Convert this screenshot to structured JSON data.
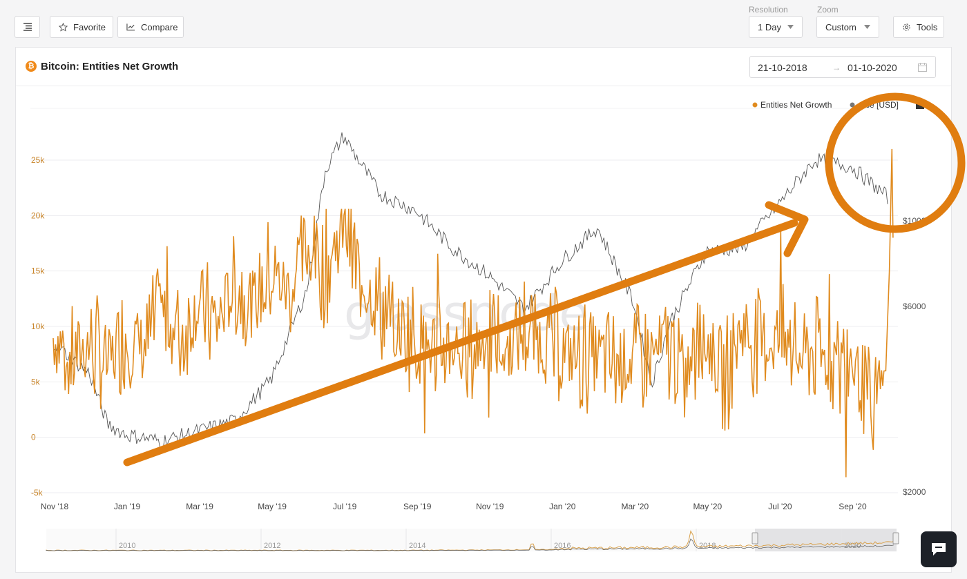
{
  "toolbar": {
    "favorite_label": "Favorite",
    "compare_label": "Compare",
    "resolution_label": "Resolution",
    "resolution_value": "1 Day",
    "zoom_label": "Zoom",
    "zoom_value": "Custom",
    "tools_label": "Tools"
  },
  "panel": {
    "title": "Bitcoin: Entities Net Growth",
    "date_from": "21-10-2018",
    "date_arrow": "→",
    "date_to": "01-10-2020",
    "watermark": "glassnode"
  },
  "colors": {
    "accent": "#e08b1f",
    "price_line": "#555555",
    "annotation": "#e07d10"
  },
  "chart_data": {
    "type": "line",
    "title": "Bitcoin: Entities Net Growth",
    "legend": [
      "Entities Net Growth",
      "Price [USD]"
    ],
    "legend_visible": [
      "Entities Net Growth",
      "ce [USD]"
    ],
    "x_ticks": [
      "Nov '18",
      "Jan '19",
      "Mar '19",
      "May '19",
      "Jul '19",
      "Sep '19",
      "Nov '19",
      "Jan '20",
      "Mar '20",
      "May '20",
      "Jul '20",
      "Sep '20"
    ],
    "y_left_ticks": [
      "-5k",
      "0",
      "5k",
      "10k",
      "15k",
      "20k",
      "25k"
    ],
    "y_left_range": [
      -5000,
      26000
    ],
    "y_right_ticks": [
      "$2000",
      "$6000",
      "$10000"
    ],
    "navigator_ticks": [
      "2010",
      "2012",
      "2014",
      "2016",
      "2018",
      "2020"
    ],
    "series": [
      {
        "name": "Entities Net Growth",
        "color": "#e08b1f",
        "x_months": [
          0,
          0.5,
          1,
          1.5,
          2,
          2.5,
          3,
          3.5,
          4,
          4.5,
          5,
          5.5,
          6,
          6.5,
          7,
          7.5,
          8,
          8.5,
          9,
          9.5,
          10,
          10.5,
          11,
          11.5,
          12,
          12.5,
          13,
          13.5,
          14,
          14.5,
          15,
          15.5,
          16,
          16.5,
          17,
          17.5,
          18,
          18.5,
          19,
          19.5,
          20,
          20.5,
          21,
          21.5,
          22,
          22.5,
          23,
          23.1
        ],
        "values": [
          9000,
          7000,
          8500,
          6500,
          9500,
          8000,
          11000,
          9000,
          12000,
          10000,
          14000,
          12000,
          15000,
          13000,
          17000,
          15000,
          19000,
          14000,
          12000,
          10000,
          9000,
          8000,
          8500,
          7500,
          9500,
          8000,
          10000,
          8500,
          8000,
          7000,
          7500,
          6500,
          7000,
          7500,
          8000,
          6000,
          9000,
          5000,
          10000,
          8000,
          9000,
          7000,
          8000,
          6000,
          7000,
          3000,
          5000,
          26000
        ]
      },
      {
        "name": "Price [USD]",
        "color": "#555555",
        "x_months": [
          0,
          1,
          1.5,
          2,
          3,
          4,
          5,
          6,
          7,
          7.5,
          8,
          9,
          10,
          11,
          12,
          13,
          14,
          15,
          16,
          16.5,
          17,
          18,
          19,
          20,
          21,
          22,
          23
        ],
        "values": [
          6400,
          5500,
          4000,
          3700,
          3500,
          3800,
          4100,
          5300,
          8000,
          11500,
          12500,
          10800,
          10300,
          9200,
          8400,
          7400,
          8800,
          9800,
          7600,
          5200,
          7000,
          9100,
          9200,
          10500,
          11800,
          11600,
          10700
        ]
      }
    ]
  }
}
